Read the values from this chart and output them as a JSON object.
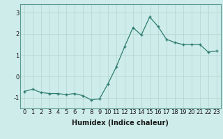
{
  "x": [
    0,
    1,
    2,
    3,
    4,
    5,
    6,
    7,
    8,
    9,
    10,
    11,
    12,
    13,
    14,
    15,
    16,
    17,
    18,
    19,
    20,
    21,
    22,
    23
  ],
  "y": [
    -0.7,
    -0.6,
    -0.75,
    -0.8,
    -0.8,
    -0.85,
    -0.8,
    -0.9,
    -1.1,
    -1.05,
    -0.35,
    0.45,
    1.4,
    2.3,
    1.95,
    2.8,
    2.35,
    1.75,
    1.6,
    1.5,
    1.5,
    1.5,
    1.15,
    1.2
  ],
  "line_color": "#2e7d6e",
  "marker": "+",
  "markersize": 3.5,
  "linewidth": 0.9,
  "background_color": "#ceecea",
  "grid_color": "#b8d8d4",
  "xlabel": "Humidex (Indice chaleur)",
  "xlabel_fontsize": 7,
  "tick_fontsize": 6,
  "ylabel_ticks": [
    -1,
    0,
    1,
    2,
    3
  ],
  "ylim": [
    -1.5,
    3.4
  ],
  "xlim": [
    -0.5,
    23.5
  ]
}
